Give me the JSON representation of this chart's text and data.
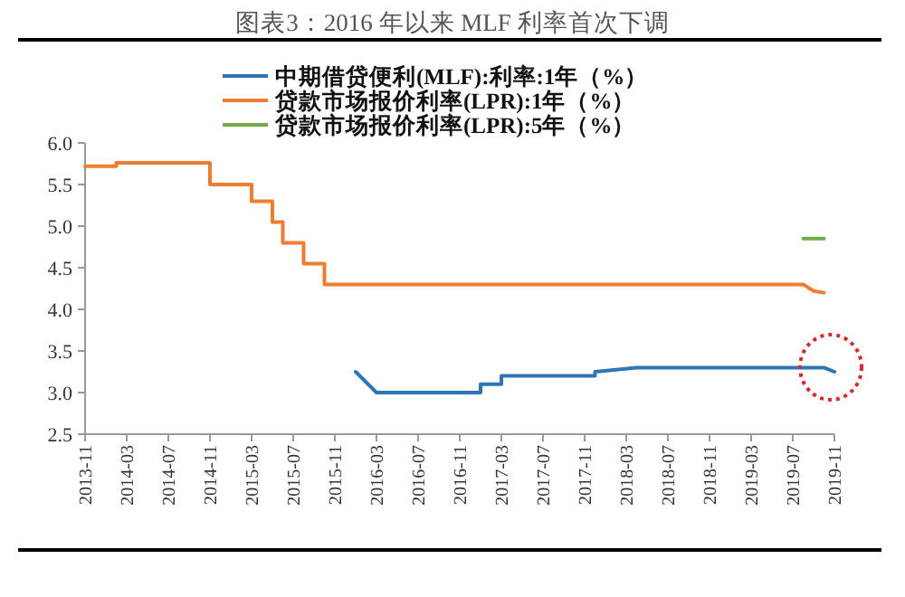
{
  "chart_data": {
    "type": "line",
    "title": "图表3：2016 年以来 MLF 利率首次下调",
    "legend": "top",
    "xlim": [
      "2013-11",
      "2019-11"
    ],
    "xticks": [
      {
        "value": "2013-11",
        "label": "2013-11"
      },
      {
        "value": "2014-03",
        "label": "2014-03"
      },
      {
        "value": "2014-07",
        "label": "2014-07"
      },
      {
        "value": "2014-11",
        "label": "2014-11"
      },
      {
        "value": "2015-03",
        "label": "2015-03"
      },
      {
        "value": "2015-07",
        "label": "2015-07"
      },
      {
        "value": "2015-11",
        "label": "2015-11"
      },
      {
        "value": "2016-03",
        "label": "2016-03"
      },
      {
        "value": "2016-07",
        "label": "2016-07"
      },
      {
        "value": "2016-11",
        "label": "2016-11"
      },
      {
        "value": "2017-03",
        "label": "2017-03"
      },
      {
        "value": "2017-07",
        "label": "2017-07"
      },
      {
        "value": "2017-11",
        "label": "2017-11"
      },
      {
        "value": "2018-03",
        "label": "2018-03"
      },
      {
        "value": "2018-07",
        "label": "2018-07"
      },
      {
        "value": "2018-11",
        "label": "2018-11"
      },
      {
        "value": "2019-03",
        "label": "2019-03"
      },
      {
        "value": "2019-07",
        "label": "2019-07"
      },
      {
        "value": "2019-11",
        "label": "2019-11"
      }
    ],
    "ylim": [
      2.5,
      6.0
    ],
    "yticks": [
      {
        "value": 2.5,
        "label": "2.5"
      },
      {
        "value": 3.0,
        "label": "3.0"
      },
      {
        "value": 3.5,
        "label": "3.5"
      },
      {
        "value": 4.0,
        "label": "4.0"
      },
      {
        "value": 4.5,
        "label": "4.5"
      },
      {
        "value": 5.0,
        "label": "5.0"
      },
      {
        "value": 5.5,
        "label": "5.5"
      },
      {
        "value": 6.0,
        "label": "6.0"
      }
    ],
    "series": [
      {
        "name": "中期借贷便利(MLF):利率:1年（%）",
        "color": "#2e75b6",
        "x": [
          "2016-01",
          "2016-03",
          "2016-03",
          "2017-01",
          "2017-01",
          "2017-03",
          "2017-03",
          "2017-12",
          "2017-12",
          "2018-04",
          "2019-10",
          "2019-11"
        ],
        "values": [
          3.25,
          3.0,
          3.0,
          3.0,
          3.1,
          3.1,
          3.2,
          3.2,
          3.25,
          3.3,
          3.3,
          3.25
        ]
      },
      {
        "name": "贷款市场报价利率(LPR):1年（%）",
        "color": "#ed7d31",
        "x": [
          "2013-11",
          "2014-02",
          "2014-02",
          "2014-11",
          "2014-11",
          "2015-03",
          "2015-03",
          "2015-05",
          "2015-05",
          "2015-06",
          "2015-06",
          "2015-08",
          "2015-08",
          "2015-10",
          "2015-10",
          "2019-08",
          "2019-09",
          "2019-10"
        ],
        "values": [
          5.72,
          5.72,
          5.76,
          5.76,
          5.5,
          5.5,
          5.3,
          5.3,
          5.05,
          5.05,
          4.8,
          4.8,
          4.55,
          4.55,
          4.3,
          4.3,
          4.22,
          4.2
        ]
      },
      {
        "name": "贷款市场报价利率(LPR):5年（%）",
        "color": "#70ad47",
        "x": [
          "2019-08",
          "2019-10"
        ],
        "values": [
          4.85,
          4.85
        ]
      }
    ]
  }
}
